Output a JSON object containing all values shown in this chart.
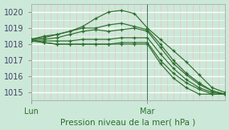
{
  "xlabel": "Pression niveau de la mer( hPa )",
  "bg_color": "#cce8d8",
  "grid_color_h": "#ffffff",
  "grid_color_v_minor": "#f0b8b8",
  "line_color": "#2d6e2d",
  "marker": "+",
  "ylim": [
    1014.5,
    1020.5
  ],
  "xlim": [
    0,
    45
  ],
  "xtick_positions": [
    0,
    27
  ],
  "xticklabels": [
    "Lun",
    "Mar"
  ],
  "yticks": [
    1015,
    1016,
    1017,
    1018,
    1019,
    1020
  ],
  "vline_x": 27,
  "lines": [
    [
      0,
      1018.3,
      3,
      1018.5,
      6,
      1018.6,
      9,
      1018.8,
      12,
      1019.1,
      15,
      1019.6,
      18,
      1020.0,
      21,
      1020.1,
      24,
      1019.9,
      27,
      1019.0,
      30,
      1018.3,
      33,
      1017.6,
      36,
      1016.9,
      39,
      1016.1,
      42,
      1015.3,
      45,
      1015.0
    ],
    [
      0,
      1018.3,
      3,
      1018.4,
      6,
      1018.6,
      9,
      1018.8,
      12,
      1019.0,
      15,
      1019.0,
      18,
      1019.2,
      21,
      1019.3,
      24,
      1019.1,
      27,
      1018.9,
      30,
      1018.0,
      33,
      1017.0,
      36,
      1016.2,
      39,
      1015.6,
      42,
      1015.1,
      45,
      1014.9
    ],
    [
      0,
      1018.3,
      3,
      1018.3,
      6,
      1018.4,
      9,
      1018.6,
      12,
      1018.8,
      15,
      1018.9,
      18,
      1018.8,
      21,
      1018.9,
      24,
      1019.0,
      27,
      1018.8,
      30,
      1017.8,
      33,
      1016.8,
      36,
      1016.1,
      39,
      1015.5,
      42,
      1015.1,
      45,
      1014.9
    ],
    [
      0,
      1018.2,
      3,
      1018.2,
      6,
      1018.2,
      9,
      1018.2,
      12,
      1018.3,
      15,
      1018.3,
      18,
      1018.3,
      21,
      1018.4,
      24,
      1018.4,
      27,
      1018.4,
      30,
      1017.4,
      33,
      1016.5,
      36,
      1015.8,
      39,
      1015.3,
      42,
      1015.0,
      45,
      1014.9
    ],
    [
      0,
      1018.2,
      3,
      1018.1,
      6,
      1018.0,
      9,
      1018.0,
      12,
      1018.0,
      15,
      1018.0,
      18,
      1018.0,
      21,
      1018.1,
      24,
      1018.1,
      27,
      1018.1,
      30,
      1017.0,
      33,
      1016.2,
      36,
      1015.6,
      39,
      1015.2,
      42,
      1014.9,
      45,
      1014.9
    ],
    [
      0,
      1018.3,
      3,
      1018.1,
      6,
      1018.0,
      9,
      1018.0,
      12,
      1018.0,
      15,
      1018.0,
      18,
      1018.0,
      21,
      1018.0,
      24,
      1018.0,
      27,
      1018.0,
      30,
      1016.8,
      33,
      1015.9,
      36,
      1015.3,
      39,
      1014.9,
      42,
      1014.9,
      45,
      1014.9
    ]
  ]
}
